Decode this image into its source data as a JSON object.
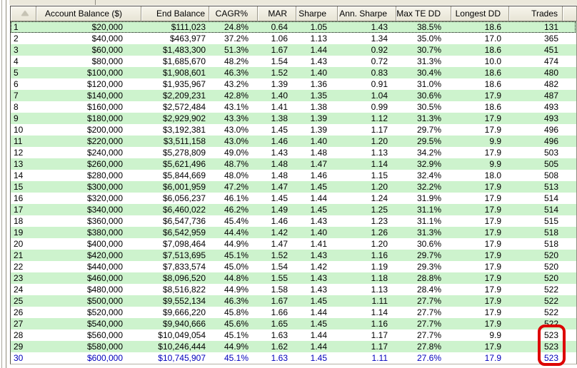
{
  "colors": {
    "row_green": "#cdf3cd",
    "row_white": "#ffffff",
    "last_row_text": "#0000bb",
    "annotation_red": "#dd0000",
    "header_bg": "#efece0"
  },
  "icons": {
    "sort_ascending": "triangle-up"
  },
  "table": {
    "columns": [
      {
        "key": "num",
        "label": ""
      },
      {
        "key": "acct",
        "label": "Account Balance ($)"
      },
      {
        "key": "end",
        "label": "End Balance"
      },
      {
        "key": "cagr",
        "label": "CAGR%"
      },
      {
        "key": "mar",
        "label": "MAR"
      },
      {
        "key": "sharpe",
        "label": "Sharpe"
      },
      {
        "key": "ann",
        "label": "Ann. Sharpe"
      },
      {
        "key": "maxdd",
        "label": "Max TE DD"
      },
      {
        "key": "ldd",
        "label": "Longest DD"
      },
      {
        "key": "trades",
        "label": "Trades"
      }
    ],
    "rows": [
      [
        "1",
        "$20,000",
        "$111,023",
        "24.8%",
        "0.64",
        "1.05",
        "1.43",
        "38.5%",
        "18.6",
        "131"
      ],
      [
        "2",
        "$40,000",
        "$463,977",
        "37.2%",
        "1.06",
        "1.13",
        "1.34",
        "35.0%",
        "17.0",
        "365"
      ],
      [
        "3",
        "$60,000",
        "$1,483,300",
        "51.3%",
        "1.67",
        "1.44",
        "0.92",
        "30.7%",
        "18.6",
        "451"
      ],
      [
        "4",
        "$80,000",
        "$1,685,670",
        "48.2%",
        "1.54",
        "1.43",
        "0.72",
        "31.3%",
        "10.0",
        "474"
      ],
      [
        "5",
        "$100,000",
        "$1,908,601",
        "46.3%",
        "1.52",
        "1.40",
        "0.83",
        "30.4%",
        "18.6",
        "480"
      ],
      [
        "6",
        "$120,000",
        "$1,935,967",
        "43.2%",
        "1.39",
        "1.36",
        "0.91",
        "31.0%",
        "18.6",
        "482"
      ],
      [
        "7",
        "$140,000",
        "$2,209,231",
        "42.8%",
        "1.40",
        "1.35",
        "1.04",
        "30.6%",
        "17.9",
        "487"
      ],
      [
        "8",
        "$160,000",
        "$2,572,484",
        "43.1%",
        "1.41",
        "1.38",
        "0.99",
        "30.5%",
        "18.6",
        "493"
      ],
      [
        "9",
        "$180,000",
        "$2,929,902",
        "43.3%",
        "1.38",
        "1.39",
        "1.12",
        "31.3%",
        "17.9",
        "493"
      ],
      [
        "10",
        "$200,000",
        "$3,192,381",
        "43.0%",
        "1.45",
        "1.39",
        "1.17",
        "29.7%",
        "17.9",
        "496"
      ],
      [
        "11",
        "$220,000",
        "$3,511,158",
        "43.0%",
        "1.46",
        "1.40",
        "1.20",
        "29.5%",
        "9.9",
        "496"
      ],
      [
        "12",
        "$240,000",
        "$5,278,809",
        "49.0%",
        "1.43",
        "1.48",
        "1.13",
        "34.2%",
        "17.9",
        "503"
      ],
      [
        "13",
        "$260,000",
        "$5,621,496",
        "48.7%",
        "1.48",
        "1.47",
        "1.14",
        "32.9%",
        "9.9",
        "505"
      ],
      [
        "14",
        "$280,000",
        "$5,844,669",
        "48.0%",
        "1.48",
        "1.46",
        "1.15",
        "32.4%",
        "18.0",
        "508"
      ],
      [
        "15",
        "$300,000",
        "$6,001,959",
        "47.2%",
        "1.47",
        "1.45",
        "1.20",
        "32.2%",
        "17.9",
        "513"
      ],
      [
        "16",
        "$320,000",
        "$6,056,237",
        "46.1%",
        "1.45",
        "1.44",
        "1.24",
        "31.9%",
        "17.9",
        "514"
      ],
      [
        "17",
        "$340,000",
        "$6,460,022",
        "46.2%",
        "1.49",
        "1.45",
        "1.25",
        "31.1%",
        "17.9",
        "514"
      ],
      [
        "18",
        "$360,000",
        "$6,547,736",
        "45.4%",
        "1.46",
        "1.43",
        "1.23",
        "31.1%",
        "17.9",
        "515"
      ],
      [
        "19",
        "$380,000",
        "$6,542,959",
        "44.4%",
        "1.42",
        "1.40",
        "1.26",
        "31.3%",
        "17.9",
        "518"
      ],
      [
        "20",
        "$400,000",
        "$7,098,464",
        "44.9%",
        "1.47",
        "1.41",
        "1.20",
        "30.6%",
        "17.9",
        "518"
      ],
      [
        "21",
        "$420,000",
        "$7,513,695",
        "45.1%",
        "1.52",
        "1.43",
        "1.16",
        "29.7%",
        "17.9",
        "520"
      ],
      [
        "22",
        "$440,000",
        "$7,833,574",
        "45.0%",
        "1.54",
        "1.42",
        "1.19",
        "29.3%",
        "17.9",
        "520"
      ],
      [
        "23",
        "$460,000",
        "$8,096,520",
        "44.8%",
        "1.55",
        "1.43",
        "1.18",
        "28.8%",
        "17.9",
        "520"
      ],
      [
        "24",
        "$480,000",
        "$8,516,822",
        "44.9%",
        "1.58",
        "1.43",
        "1.13",
        "28.4%",
        "17.9",
        "522"
      ],
      [
        "25",
        "$500,000",
        "$9,552,134",
        "46.3%",
        "1.67",
        "1.45",
        "1.11",
        "27.7%",
        "17.9",
        "522"
      ],
      [
        "26",
        "$520,000",
        "$9,666,220",
        "45.8%",
        "1.66",
        "1.44",
        "1.14",
        "27.7%",
        "17.9",
        "522"
      ],
      [
        "27",
        "$540,000",
        "$9,940,666",
        "45.6%",
        "1.65",
        "1.45",
        "1.16",
        "27.7%",
        "17.9",
        "522"
      ],
      [
        "28",
        "$560,000",
        "$10,049,054",
        "45.1%",
        "1.63",
        "1.44",
        "1.17",
        "27.7%",
        "9.9",
        "523"
      ],
      [
        "29",
        "$580,000",
        "$10,246,444",
        "44.9%",
        "1.62",
        "1.44",
        "1.17",
        "27.8%",
        "17.9",
        "523"
      ],
      [
        "30",
        "$600,000",
        "$10,745,907",
        "45.1%",
        "1.63",
        "1.45",
        "1.11",
        "27.6%",
        "17.9",
        "523"
      ]
    ],
    "focused_row": "1",
    "highlighted_trades_rows": [
      "28",
      "29",
      "30"
    ]
  }
}
